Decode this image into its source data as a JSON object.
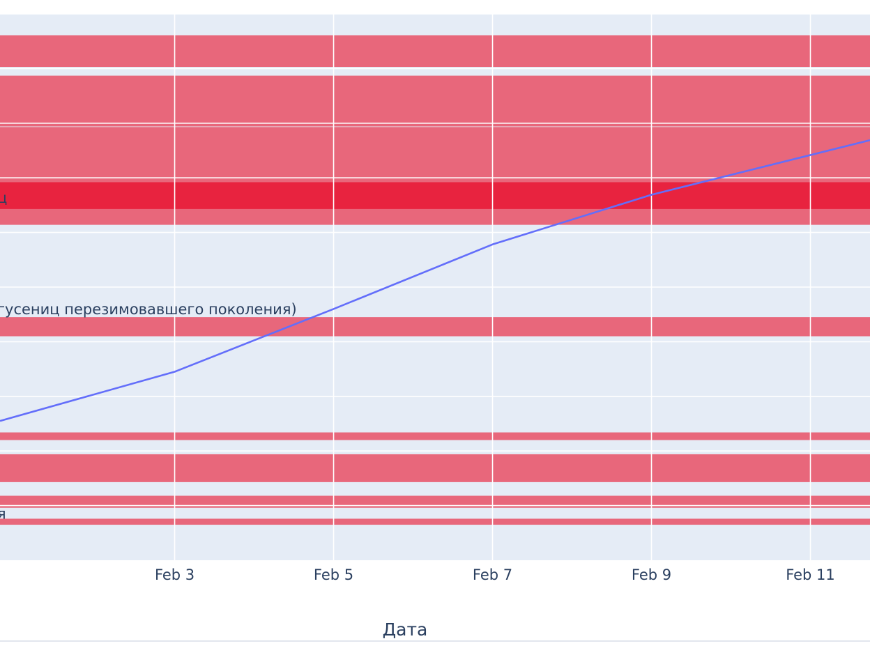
{
  "chart_data": {
    "type": "line",
    "title": "",
    "xlabel": "Дата",
    "ylabel": "",
    "x_ticks": [
      "Feb 3",
      "Feb 5",
      "Feb 7",
      "Feb 9",
      "Feb 11"
    ],
    "x_range": [
      "2024-01-31T19:15",
      "2024-02-11T18:00"
    ],
    "y_range": [
      0,
      100
    ],
    "grid": true,
    "legend": "none",
    "series": [
      {
        "color": "#636efa",
        "x": [
          "2024-01-31T19:15",
          "2024-02-03",
          "2024-02-05",
          "2024-02-07",
          "2024-02-09",
          "2024-02-11T18:00"
        ],
        "y": [
          25.5,
          34.5,
          46.0,
          57.8,
          66.9,
          76.9
        ]
      }
    ],
    "bands": [
      {
        "from": 90.3,
        "to": 96.1,
        "color": "#e8677b"
      },
      {
        "from": 79.4,
        "to": 88.7,
        "color": "#e8677b"
      },
      {
        "from": 61.4,
        "to": 79.3,
        "color": "#e8677b"
      },
      {
        "from": 64.3,
        "to": 69.2,
        "color": "#e8233f"
      },
      {
        "from": 41.0,
        "to": 44.5,
        "color": "#e8677b"
      },
      {
        "from": 22.0,
        "to": 23.4,
        "color": "#e8677b"
      },
      {
        "from": 14.3,
        "to": 19.4,
        "color": "#e8677b"
      },
      {
        "from": 9.6,
        "to": 11.8,
        "color": "#e8677b"
      },
      {
        "from": 6.5,
        "to": 7.6,
        "color": "#e8677b"
      }
    ],
    "band_labels": [
      {
        "text": "ц",
        "y": 66.3
      },
      {
        "text": "гусениц перезимовавшего поколения)",
        "y": 45.9
      },
      {
        "text": "я",
        "y": 8.5
      }
    ]
  }
}
